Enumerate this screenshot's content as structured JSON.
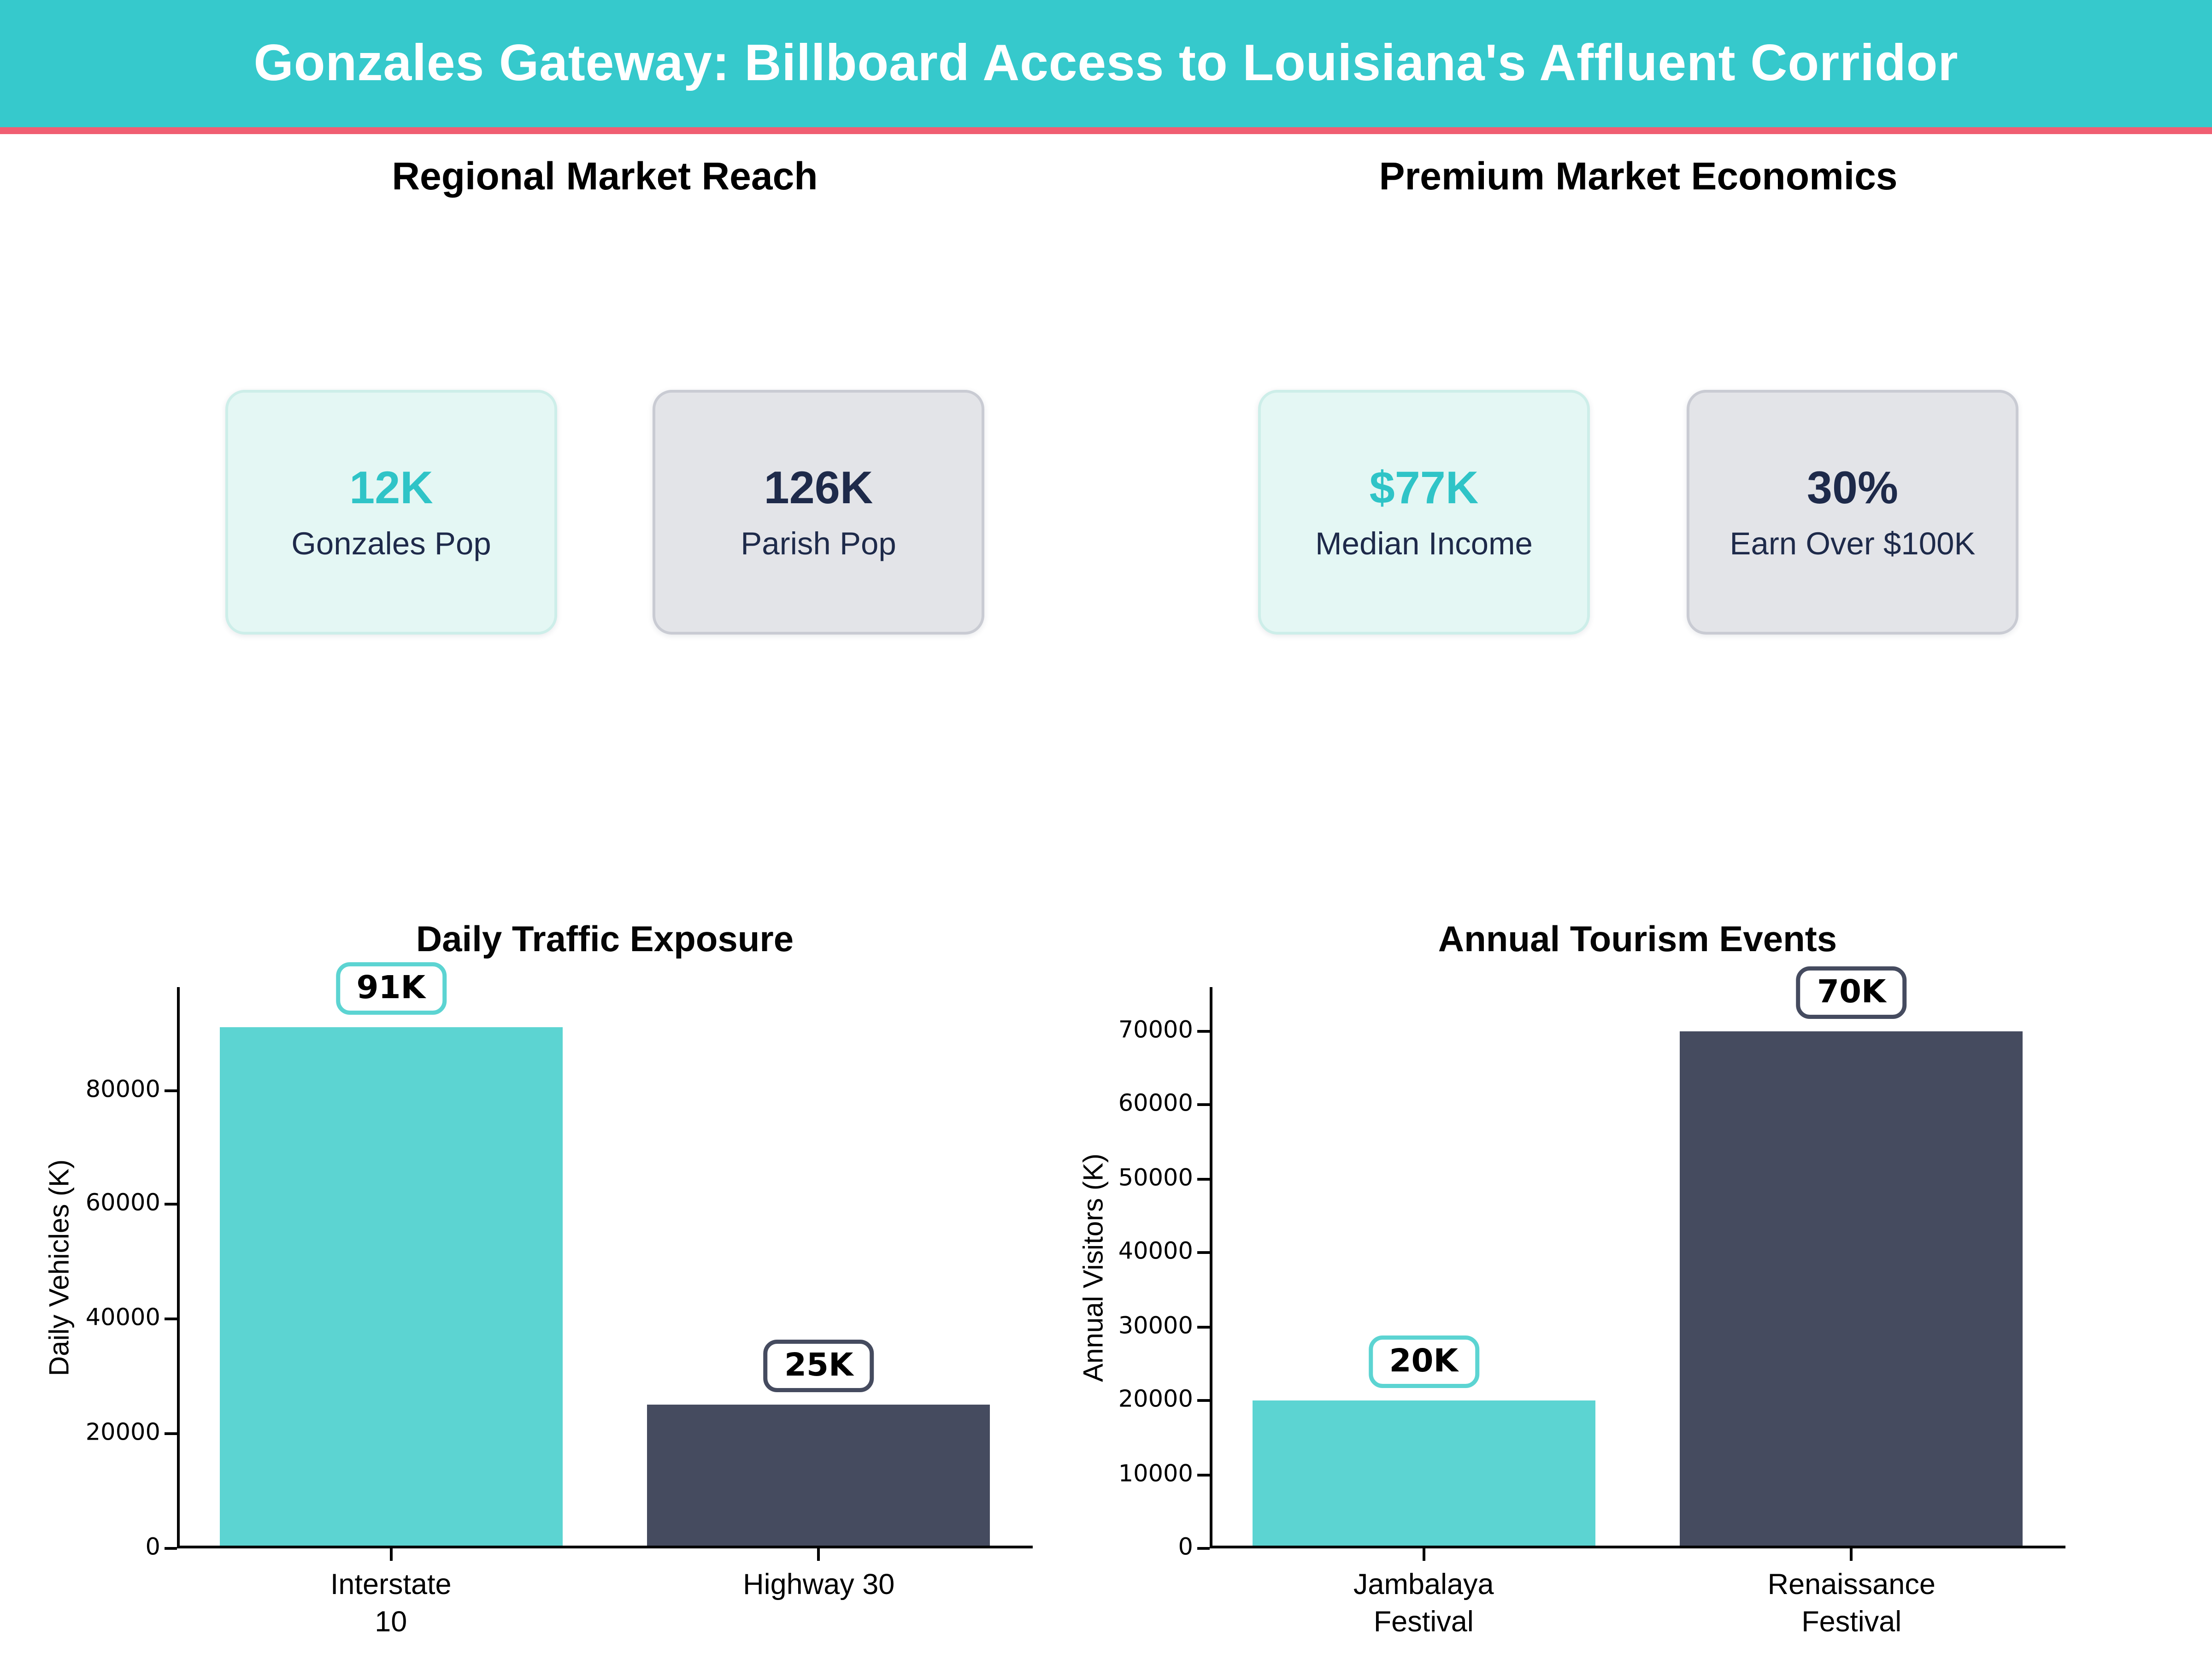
{
  "header": {
    "title": "Gonzales Gateway: Billboard Access to Louisiana's Affluent Corridor"
  },
  "colors": {
    "header_bg": "#36c9cc",
    "accent_stripe": "#f05e72",
    "teal_bar": "#5cd4d2",
    "navy_bar": "#454b5f",
    "teal_value_text": "#2fc4c7",
    "navy_text": "#1e2a4a",
    "mint_card_bg": "#e4f7f4",
    "mint_card_border": "#cdeee9",
    "gray_card_bg": "#e3e4e8",
    "gray_card_border": "#c9cbd3"
  },
  "sections": [
    {
      "heading": "Regional Market Reach",
      "cards": [
        {
          "value": "12K",
          "label": "Gonzales Pop"
        },
        {
          "value": "126K",
          "label": "Parish Pop"
        }
      ]
    },
    {
      "heading": "Premium Market Economics",
      "cards": [
        {
          "value": "$77K",
          "label": "Median Income"
        },
        {
          "value": "30%",
          "label": "Earn Over $100K"
        }
      ]
    }
  ],
  "chart_data": [
    {
      "type": "bar",
      "title": "Daily Traffic Exposure",
      "ylabel": "Daily Vehicles (K)",
      "xlabel": "",
      "categories": [
        "Interstate\n10",
        "Highway 30"
      ],
      "values": [
        91000,
        25000
      ],
      "value_labels": [
        "91K",
        "25K"
      ],
      "bar_colors": [
        "#5cd4d2",
        "#454b5f"
      ],
      "yticks": [
        0,
        20000,
        40000,
        60000,
        80000
      ],
      "ylim": [
        0,
        98000
      ],
      "grid": false,
      "legend": false
    },
    {
      "type": "bar",
      "title": "Annual Tourism Events",
      "ylabel": "Annual Visitors (K)",
      "xlabel": "",
      "categories": [
        "Jambalaya\nFestival",
        "Renaissance\nFestival"
      ],
      "values": [
        20000,
        70000
      ],
      "value_labels": [
        "20K",
        "70K"
      ],
      "bar_colors": [
        "#5cd4d2",
        "#454b5f"
      ],
      "yticks": [
        0,
        10000,
        20000,
        30000,
        40000,
        50000,
        60000,
        70000
      ],
      "ylim": [
        0,
        76000
      ],
      "grid": false,
      "legend": false
    }
  ]
}
